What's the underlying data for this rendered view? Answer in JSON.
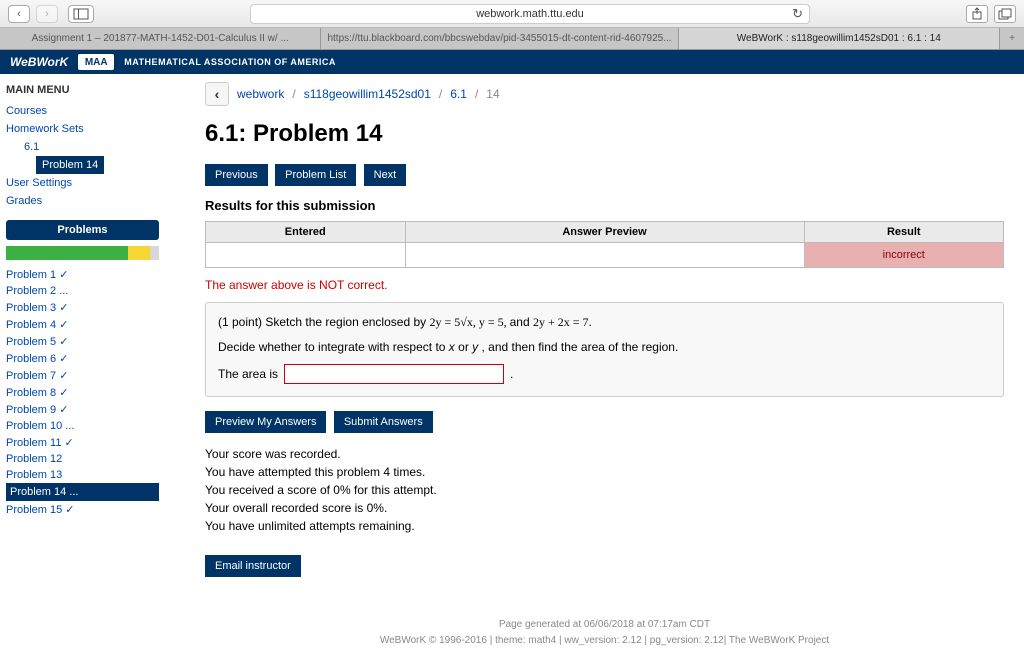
{
  "safari": {
    "url": "webwork.math.ttu.edu",
    "tabs": [
      "Assignment 1 – 201877-MATH-1452-D01-Calculus II w/ ...",
      "https://ttu.blackboard.com/bbcswebdav/pid-3455015-dt-content-rid-4607925...",
      "WeBWorK : s118geowillim1452sD01 : 6.1 : 14"
    ]
  },
  "banner": {
    "logo": "WeBWorK",
    "maa": "MAA",
    "text": "MATHEMATICAL ASSOCIATION OF AMERICA"
  },
  "sidebar": {
    "main_menu": "MAIN MENU",
    "courses": "Courses",
    "homework_sets": "Homework Sets",
    "set": "6.1",
    "problem": "Problem 14",
    "user_settings": "User Settings",
    "grades": "Grades",
    "problems_header": "Problems",
    "progress": [
      {
        "color": "#3cb043",
        "width": 58
      },
      {
        "color": "#3cb043",
        "width": 22
      },
      {
        "color": "#f7d733",
        "width": 14
      },
      {
        "color": "#d8d8d8",
        "width": 6
      }
    ],
    "problems": [
      "Problem 1 ✓",
      "Problem 2 ...",
      "Problem 3 ✓",
      "Problem 4 ✓",
      "Problem 5 ✓",
      "Problem 6 ✓",
      "Problem 7 ✓",
      "Problem 8 ✓",
      "Problem 9 ✓",
      "Problem 10 ...",
      "Problem 11 ✓",
      "Problem 12",
      "Problem 13",
      "Problem 14 ...",
      "Problem 15 ✓"
    ],
    "current_index": 13
  },
  "breadcrumb": {
    "items": [
      "webwork",
      "s118geowillim1452sd01",
      "6.1"
    ],
    "current": "14"
  },
  "page": {
    "title": "6.1: Problem 14",
    "prev": "Previous",
    "list": "Problem List",
    "next": "Next",
    "results_title": "Results for this submission",
    "table": {
      "headers": [
        "Entered",
        "Answer Preview",
        "Result"
      ],
      "row": [
        "",
        "",
        "incorrect"
      ]
    },
    "error": "The answer above is NOT correct.",
    "problem": {
      "line1_a": "(1 point) Sketch the region enclosed by ",
      "eq1": "2y = 5√x, y = 5, ",
      "line1_b": "and ",
      "eq2": "2y + 2x = 7",
      "line2_a": "Decide whether to integrate with respect to ",
      "var1": "x",
      "line2_b": " or ",
      "var2": "y",
      "line2_c": ", and then find the area of the region.",
      "area_label": "The area is"
    },
    "preview": "Preview My Answers",
    "submit": "Submit Answers",
    "score": [
      "Your score was recorded.",
      "You have attempted this problem 4 times.",
      "You received a score of 0% for this attempt.",
      "Your overall recorded score is 0%.",
      "You have unlimited attempts remaining."
    ],
    "email": "Email instructor"
  },
  "footer": {
    "line1": "Page generated at 06/06/2018 at 07:17am CDT",
    "line2": "WeBWorK © 1996-2016 | theme: math4 | ww_version: 2.12 | pg_version: 2.12| The WeBWorK Project"
  }
}
